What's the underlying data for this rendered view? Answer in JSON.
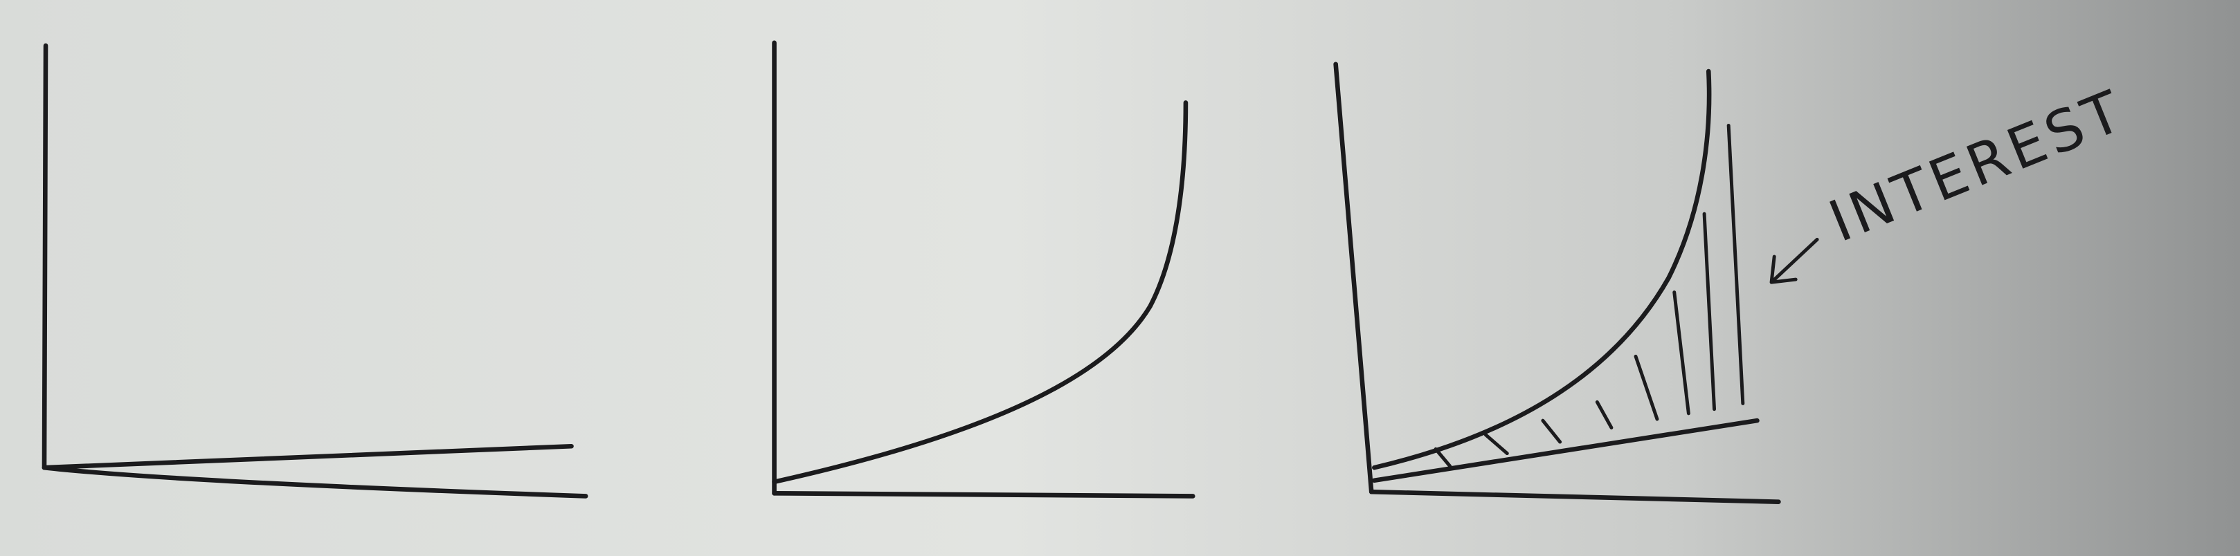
{
  "annotation": {
    "label": "INTEREST"
  }
}
